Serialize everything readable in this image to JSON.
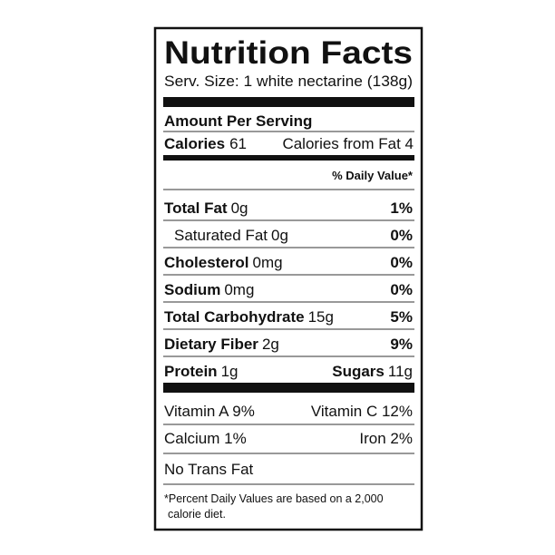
{
  "header": {
    "title": "Nutrition Facts",
    "serving_size": "Serv. Size: 1 white nectarine (138g)"
  },
  "amount_per_serving": "Amount Per Serving",
  "calories": {
    "label": "Calories",
    "value": "61",
    "from_fat": "Calories from Fat 4"
  },
  "daily_value_header": "% Daily Value*",
  "nutrients": [
    {
      "name": "Total Fat",
      "amount": "0g",
      "dv": "1%"
    },
    {
      "name": "Saturated Fat",
      "amount": "0g",
      "dv": "0%"
    },
    {
      "name": "Cholesterol",
      "amount": "0mg",
      "dv": "0%"
    },
    {
      "name": "Sodium",
      "amount": "0mg",
      "dv": "0%"
    },
    {
      "name": "Total Carbohydrate",
      "amount": "15g",
      "dv": "5%"
    },
    {
      "name": "Dietary Fiber",
      "amount": "2g",
      "dv": "9%"
    }
  ],
  "protein": {
    "name": "Protein",
    "amount": "1g"
  },
  "sugars": {
    "name": "Sugars",
    "amount": "11g"
  },
  "vitamins": [
    [
      "Vitamin A 9%",
      "Vitamin C 12%"
    ],
    [
      "Calcium 1%",
      "Iron 2%"
    ]
  ],
  "trans_fat": "No Trans Fat",
  "footnote": [
    "*Percent Daily Values are based on a 2,000",
    "calorie diet."
  ]
}
